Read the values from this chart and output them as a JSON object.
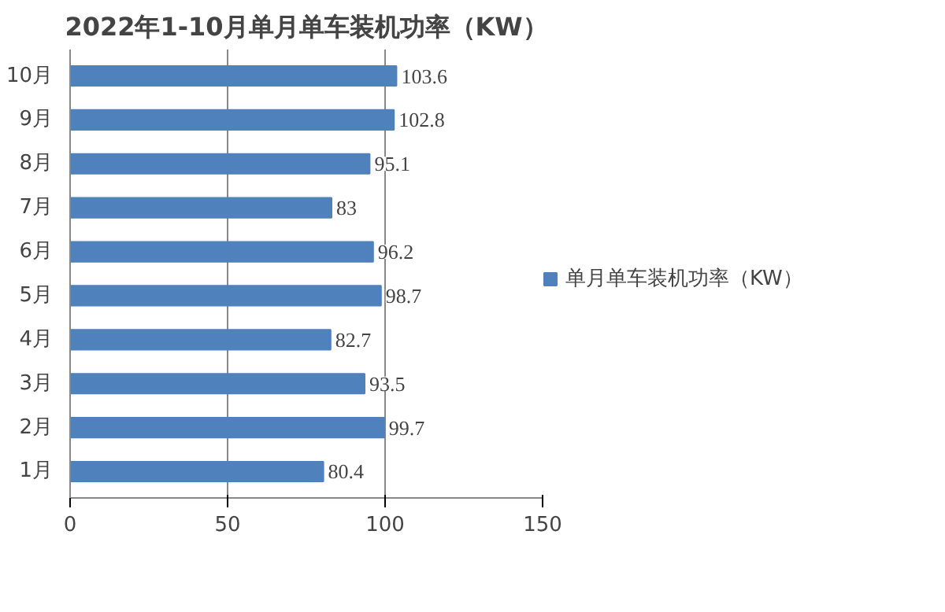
{
  "chart_data": {
    "type": "bar",
    "orientation": "horizontal",
    "title": "2022年1-10月单月单车装机功率（KW）",
    "categories": [
      "10月",
      "9月",
      "8月",
      "7月",
      "6月",
      "5月",
      "4月",
      "3月",
      "2月",
      "1月"
    ],
    "series": [
      {
        "name": "单月单车装机功率（KW）",
        "color": "#4f81bd",
        "values": [
          103.6,
          102.8,
          95.1,
          83,
          96.2,
          98.7,
          82.7,
          93.5,
          99.7,
          80.4
        ]
      }
    ],
    "xlim": [
      0,
      150
    ],
    "xticks": [
      0,
      50,
      100,
      150
    ],
    "grid": "x",
    "legend": "right",
    "data_labels": true
  }
}
